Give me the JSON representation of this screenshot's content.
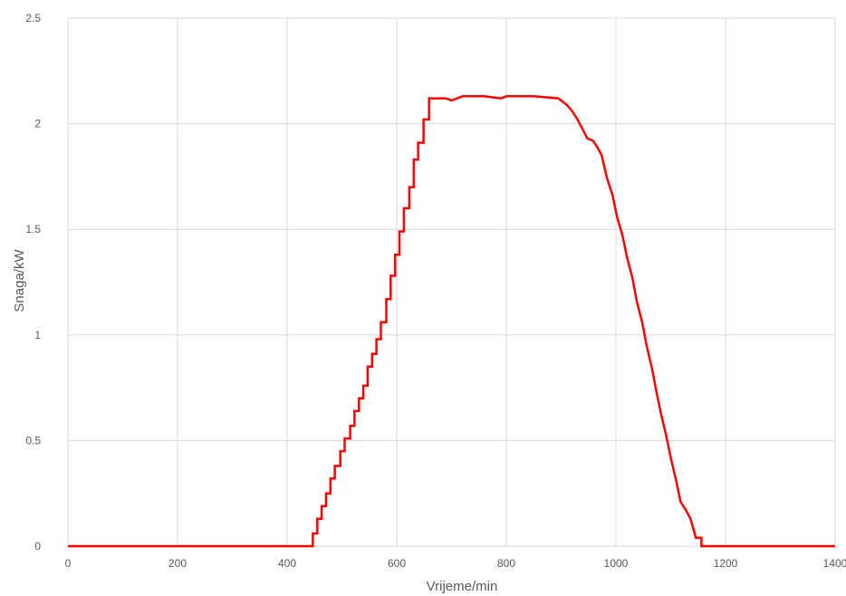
{
  "chart_data": {
    "type": "line",
    "xlabel": "Vrijeme/min",
    "ylabel": "Snaga/kW",
    "xlim": [
      0,
      1400
    ],
    "ylim": [
      0,
      2.5
    ],
    "x_ticks": [
      "0",
      "200",
      "400",
      "600",
      "800",
      "1000",
      "1200",
      "1400"
    ],
    "y_ticks": [
      "0",
      "0.5",
      "1",
      "1.5",
      "2",
      "2.5"
    ],
    "grid": true,
    "legend": "none",
    "series": [
      {
        "color": "#ff0000",
        "points": [
          [
            0,
            0
          ],
          [
            447,
            0
          ],
          [
            447,
            0.06
          ],
          [
            455,
            0.06
          ],
          [
            455,
            0.13
          ],
          [
            463,
            0.13
          ],
          [
            463,
            0.19
          ],
          [
            471,
            0.19
          ],
          [
            471,
            0.25
          ],
          [
            479,
            0.25
          ],
          [
            479,
            0.32
          ],
          [
            487,
            0.32
          ],
          [
            487,
            0.38
          ],
          [
            497,
            0.38
          ],
          [
            497,
            0.45
          ],
          [
            505,
            0.45
          ],
          [
            505,
            0.51
          ],
          [
            515,
            0.51
          ],
          [
            515,
            0.57
          ],
          [
            523,
            0.57
          ],
          [
            523,
            0.64
          ],
          [
            531,
            0.64
          ],
          [
            531,
            0.7
          ],
          [
            539,
            0.7
          ],
          [
            539,
            0.76
          ],
          [
            547,
            0.76
          ],
          [
            547,
            0.85
          ],
          [
            555,
            0.85
          ],
          [
            555,
            0.91
          ],
          [
            563,
            0.91
          ],
          [
            563,
            0.98
          ],
          [
            571,
            0.98
          ],
          [
            571,
            1.06
          ],
          [
            581,
            1.06
          ],
          [
            581,
            1.17
          ],
          [
            589,
            1.17
          ],
          [
            589,
            1.28
          ],
          [
            597,
            1.28
          ],
          [
            597,
            1.38
          ],
          [
            605,
            1.38
          ],
          [
            605,
            1.49
          ],
          [
            613,
            1.49
          ],
          [
            613,
            1.6
          ],
          [
            623,
            1.6
          ],
          [
            623,
            1.7
          ],
          [
            631,
            1.7
          ],
          [
            631,
            1.83
          ],
          [
            639,
            1.83
          ],
          [
            639,
            1.91
          ],
          [
            649,
            1.91
          ],
          [
            649,
            2.02
          ],
          [
            659,
            2.02
          ],
          [
            659,
            2.12
          ],
          [
            690,
            2.12
          ],
          [
            700,
            2.11
          ],
          [
            720,
            2.13
          ],
          [
            760,
            2.13
          ],
          [
            790,
            2.12
          ],
          [
            800,
            2.13
          ],
          [
            850,
            2.13
          ],
          [
            895,
            2.12
          ],
          [
            910,
            2.09
          ],
          [
            920,
            2.06
          ],
          [
            930,
            2.02
          ],
          [
            940,
            1.97
          ],
          [
            948,
            1.93
          ],
          [
            958,
            1.92
          ],
          [
            966,
            1.89
          ],
          [
            974,
            1.85
          ],
          [
            984,
            1.74
          ],
          [
            994,
            1.66
          ],
          [
            1002,
            1.56
          ],
          [
            1012,
            1.47
          ],
          [
            1020,
            1.37
          ],
          [
            1030,
            1.27
          ],
          [
            1038,
            1.16
          ],
          [
            1048,
            1.06
          ],
          [
            1056,
            0.95
          ],
          [
            1066,
            0.84
          ],
          [
            1074,
            0.73
          ],
          [
            1082,
            0.63
          ],
          [
            1092,
            0.52
          ],
          [
            1100,
            0.42
          ],
          [
            1110,
            0.31
          ],
          [
            1118,
            0.21
          ],
          [
            1128,
            0.17
          ],
          [
            1136,
            0.13
          ],
          [
            1146,
            0.04
          ],
          [
            1156,
            0.04
          ],
          [
            1156,
            0
          ],
          [
            1400,
            0
          ]
        ]
      }
    ]
  }
}
